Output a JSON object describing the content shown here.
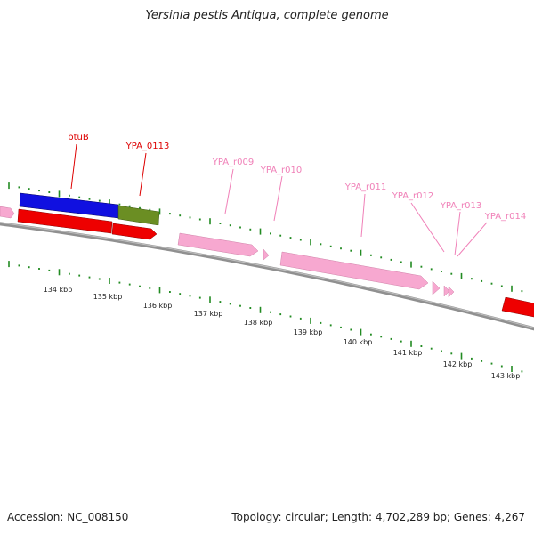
{
  "title": "Yersinia pestis Antiqua, complete genome",
  "accession": "Accession: NC_008150",
  "summary": "Topology: circular; Length: 4,702,289 bp; Genes: 4,267",
  "colors": {
    "blue_feature": "#1010e0",
    "olive_feature": "#6b8e23",
    "red_feature": "#ee0000",
    "pink_feature": "#f7a8d0",
    "backbone": "#808080",
    "tick_green": "#228b22",
    "label_red": "#dd0000",
    "label_pink": "#f080b8"
  },
  "gene_labels": [
    {
      "text": "btuB",
      "color": "red"
    },
    {
      "text": "YPA_0113",
      "color": "red"
    },
    {
      "text": "YPA_r009",
      "color": "pink"
    },
    {
      "text": "YPA_r010",
      "color": "pink"
    },
    {
      "text": "YPA_r011",
      "color": "pink"
    },
    {
      "text": "YPA_r012",
      "color": "pink"
    },
    {
      "text": "YPA_r013",
      "color": "pink"
    },
    {
      "text": "YPA_r014",
      "color": "pink"
    }
  ],
  "scale_labels": [
    "134 kbp",
    "135 kbp",
    "136 kbp",
    "137 kbp",
    "138 kbp",
    "139 kbp",
    "140 kbp",
    "141 kbp",
    "142 kbp",
    "143 kbp"
  ]
}
